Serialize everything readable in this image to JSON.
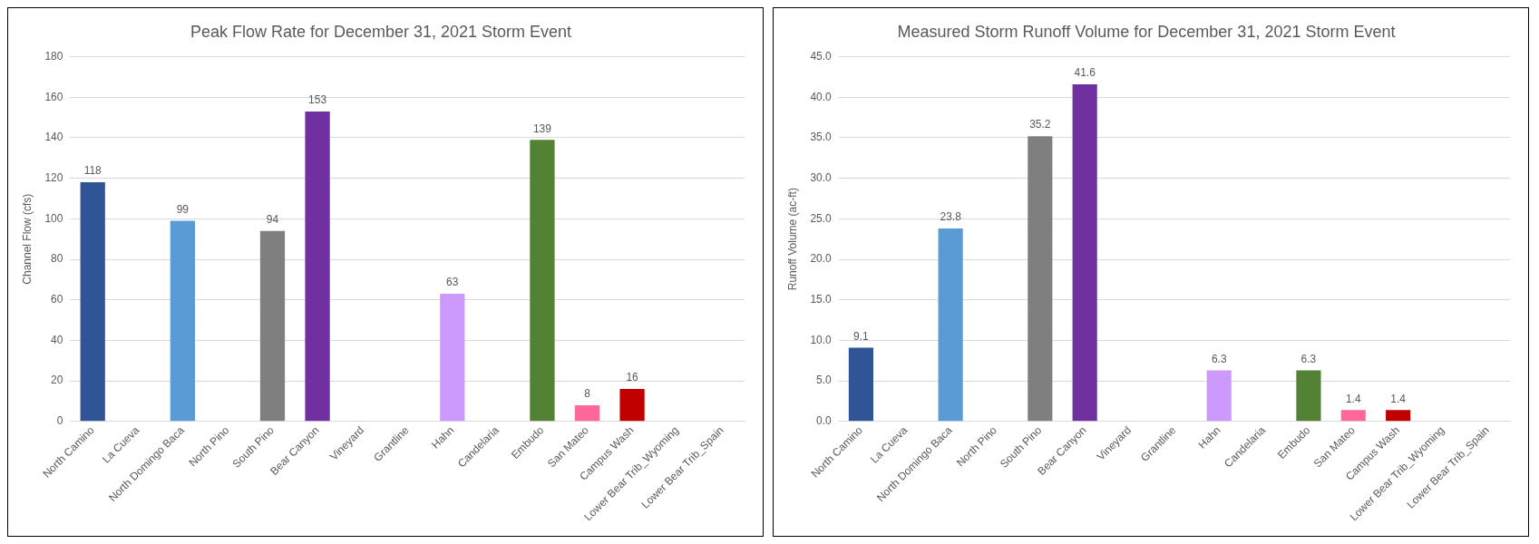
{
  "chart_data": [
    {
      "type": "bar",
      "title": "Peak Flow Rate for December 31, 2021 Storm Event",
      "ylabel": "Channel Flow (cfs)",
      "categories": [
        "North Camino",
        "La Cueva",
        "North Domingo Baca",
        "North Pino",
        "South Pino",
        "Bear Canyon",
        "Vineyard",
        "Grantline",
        "Hahn",
        "Candelaria",
        "Embudo",
        "San Mateo",
        "Campus Wash",
        "Lower Bear Trib_Wyoming",
        "Lower Bear Trib_Spain"
      ],
      "values": [
        118,
        null,
        99,
        null,
        94,
        153,
        null,
        null,
        63,
        null,
        139,
        8,
        16,
        null,
        null
      ],
      "colors": [
        "#2f5597",
        "#2f5597",
        "#5b9bd5",
        "#5b9bd5",
        "#7f7f7f",
        "#7030a0",
        "#7030a0",
        "#7030a0",
        "#cc99ff",
        "#cc99ff",
        "#548235",
        "#ff6699",
        "#c00000",
        "#c00000",
        "#c00000"
      ],
      "ylim": [
        0,
        180
      ],
      "yticks": [
        0,
        20,
        40,
        60,
        80,
        100,
        120,
        140,
        160,
        180
      ],
      "grid": "y",
      "data_labels": true,
      "legend": false
    },
    {
      "type": "bar",
      "title": "Measured Storm Runoff Volume for December 31, 2021 Storm Event",
      "ylabel": "Runoff Volume (ac-ft)",
      "categories": [
        "North Camino",
        "La Cueva",
        "North Domingo Baca",
        "North Pino",
        "South Pino",
        "Bear Canyon",
        "Vineyard",
        "Grantline",
        "Hahn",
        "Candelaria",
        "Embudo",
        "San Mateo",
        "Campus Wash",
        "Lower Bear Trib_Wyoming",
        "Lower Bear Trib_Spain"
      ],
      "values": [
        9.1,
        null,
        23.8,
        null,
        35.2,
        41.6,
        null,
        null,
        6.3,
        null,
        6.3,
        1.4,
        1.4,
        null,
        null
      ],
      "colors": [
        "#2f5597",
        "#2f5597",
        "#5b9bd5",
        "#5b9bd5",
        "#7f7f7f",
        "#7030a0",
        "#7030a0",
        "#7030a0",
        "#cc99ff",
        "#cc99ff",
        "#548235",
        "#ff6699",
        "#c00000",
        "#c00000",
        "#c00000"
      ],
      "ylim": [
        0,
        45
      ],
      "yticks": [
        {
          "value": 0,
          "label": "0.0"
        },
        {
          "value": 5,
          "label": "5.0"
        },
        {
          "value": 10,
          "label": "10.0"
        },
        {
          "value": 15,
          "label": "15.0"
        },
        {
          "value": 20,
          "label": "20.0"
        },
        {
          "value": 25,
          "label": "25.0"
        },
        {
          "value": 30,
          "label": "30.0"
        },
        {
          "value": 35,
          "label": "35.0"
        },
        {
          "value": 40,
          "label": "40.0"
        },
        {
          "value": 45,
          "label": "45.0"
        }
      ],
      "grid": "y",
      "data_labels": true,
      "legend": false
    }
  ]
}
